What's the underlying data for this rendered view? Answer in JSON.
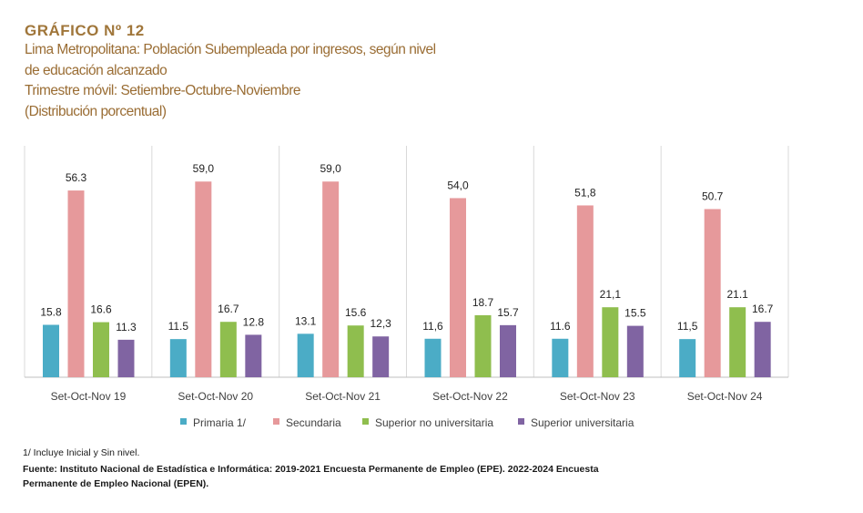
{
  "header": {
    "title": "GRÁFICO Nº 12",
    "subtitle_lines": [
      "Lima Metropolitana: Población Subempleada por ingresos, según nivel",
      "de educación alcanzado",
      "Trimestre móvil: Setiembre-Octubre-Noviembre",
      "(Distribución porcentual)"
    ]
  },
  "chart_data": {
    "type": "bar",
    "title": "Lima Metropolitana: Población Subempleada por ingresos, según nivel de educación alcanzado",
    "categories": [
      "Set-Oct-Nov 19",
      "Set-Oct-Nov 20",
      "Set-Oct-Nov 21",
      "Set-Oct-Nov 22",
      "Set-Oct-Nov 23",
      "Set-Oct-Nov 24"
    ],
    "series": [
      {
        "name": "Primaria  1/",
        "color": "#4bacc6",
        "values": [
          15.8,
          11.5,
          13.1,
          11.6,
          11.6,
          11.5
        ],
        "labels": [
          "15.8",
          "11.5",
          "13.1",
          "11,6",
          "11.6",
          "11,5"
        ]
      },
      {
        "name": "Secundaria",
        "color": "#e6999b",
        "values": [
          56.3,
          59.0,
          59.0,
          54.0,
          51.8,
          50.7
        ],
        "labels": [
          "56.3",
          "59,0",
          "59,0",
          "54,0",
          "51,8",
          "50.7"
        ]
      },
      {
        "name": "Superior no universitaria",
        "color": "#8fbe4e",
        "values": [
          16.6,
          16.7,
          15.6,
          18.7,
          21.1,
          21.1
        ],
        "labels": [
          "16.6",
          "16.7",
          "15.6",
          "18.7",
          "21,1",
          "21.1"
        ]
      },
      {
        "name": "Superior universitaria",
        "color": "#8064a2",
        "values": [
          11.3,
          12.8,
          12.3,
          15.7,
          15.5,
          16.7
        ],
        "labels": [
          "11.3",
          "12.8",
          "12,3",
          "15.7",
          "15.5",
          "16.7"
        ]
      }
    ],
    "ylim": [
      0,
      70
    ],
    "grid": false,
    "legend": "bottom"
  },
  "footer": {
    "note": "1/ Incluye Inicial y Sin nivel.",
    "source": "Fuente: Instituto Nacional de Estadística e Informática: 2019-2021 Encuesta Permanente de Empleo (EPE). 2022-2024 Encuesta Permanente de Empleo Nacional (EPEN)."
  }
}
